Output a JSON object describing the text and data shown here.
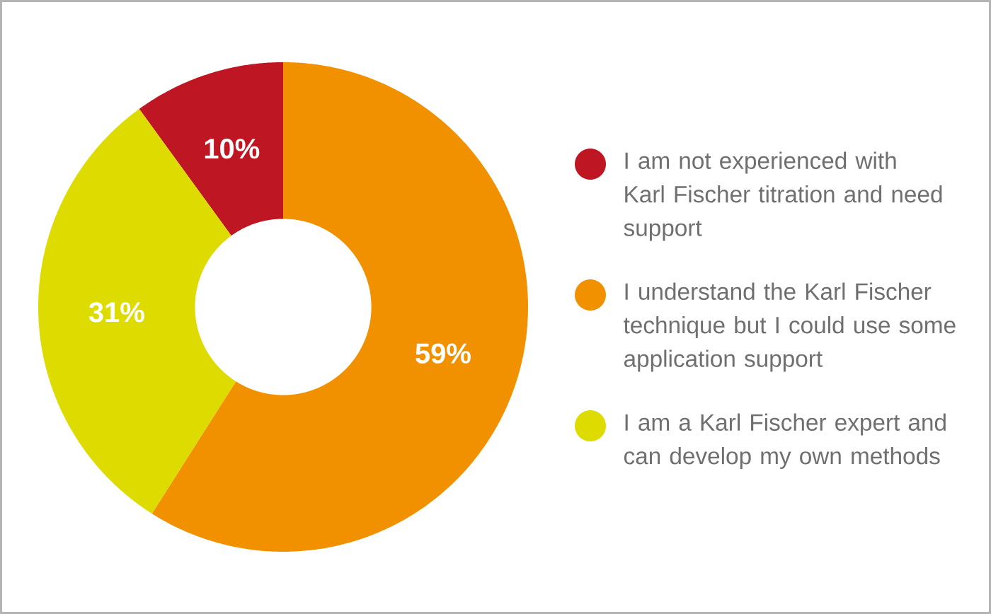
{
  "chart_data": {
    "type": "donut",
    "categories": [
      "I am not experienced with Karl Fischer titration and need support",
      "I understand the Karl Fischer technique but I could use some application support",
      "I am a Karl Fischer expert and can develop my own methods"
    ],
    "values": [
      10,
      59,
      31
    ],
    "colors": [
      "#be1622",
      "#f29100",
      "#dddb00"
    ],
    "value_labels": [
      "10%",
      "59%",
      "31%"
    ],
    "legend": "right"
  }
}
